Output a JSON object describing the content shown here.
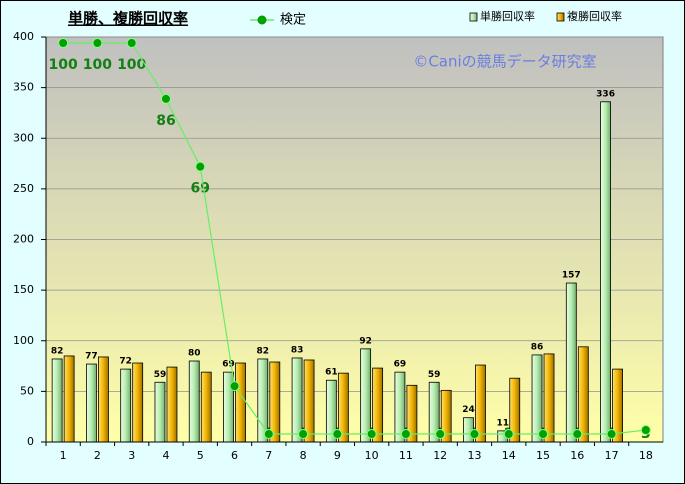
{
  "chart_data": {
    "type": "bar",
    "title": "単勝、複勝回収率",
    "watermark": "©Caniの競馬データ研究室",
    "categories": [
      "1",
      "2",
      "3",
      "4",
      "5",
      "6",
      "7",
      "8",
      "9",
      "10",
      "11",
      "12",
      "13",
      "14",
      "15",
      "16",
      "17",
      "18"
    ],
    "series": [
      {
        "name": "単勝回収率",
        "color": "#b8ecb0",
        "data_labels": true,
        "values": [
          82,
          77,
          72,
          59,
          80,
          69,
          82,
          83,
          61,
          92,
          69,
          59,
          24,
          11,
          86,
          157,
          336,
          null
        ]
      },
      {
        "name": "複勝回収率",
        "color": "#f0b400",
        "data_labels": false,
        "values": [
          85,
          84,
          78,
          74,
          69,
          78,
          79,
          81,
          68,
          73,
          56,
          51,
          76,
          63,
          87,
          94,
          72,
          null
        ]
      },
      {
        "name": "検定",
        "color": "#00a000",
        "type": "line",
        "axis": "y2",
        "data_labels": true,
        "values": [
          100,
          100,
          100,
          86,
          69,
          14,
          2,
          2,
          2,
          2,
          2,
          2,
          2,
          2,
          2,
          2,
          2,
          3
        ]
      }
    ],
    "ylim": [
      0,
      400
    ],
    "yticks": [
      0,
      50,
      100,
      150,
      200,
      250,
      300,
      350,
      400
    ],
    "y2lim": [
      0,
      101.5
    ],
    "grid": true
  }
}
